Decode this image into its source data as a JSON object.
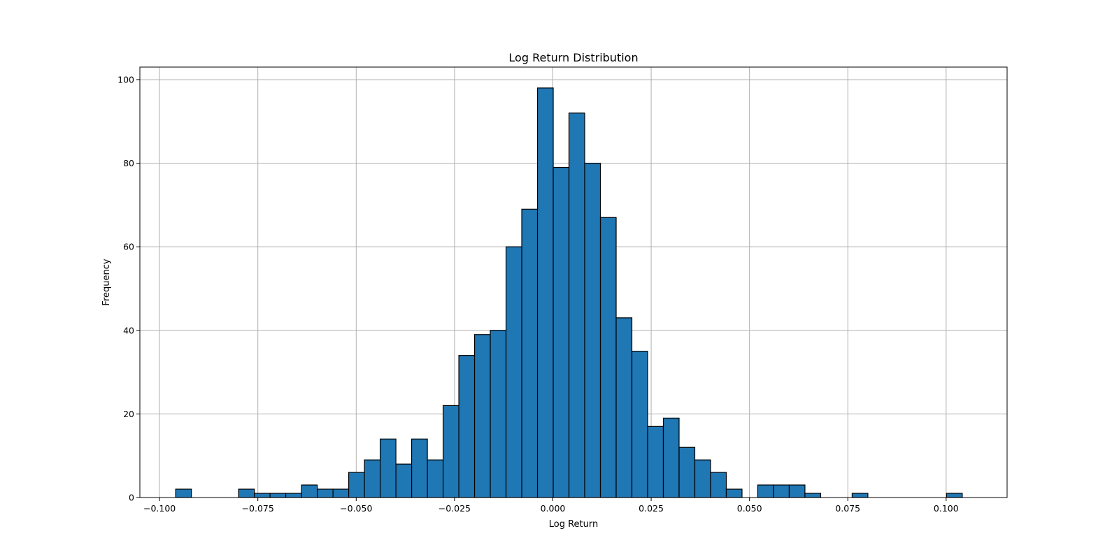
{
  "chart_data": {
    "type": "histogram",
    "title": "Log Return Distribution",
    "xlabel": "Log Return",
    "ylabel": "Frequency",
    "xlim": [
      -0.105,
      0.1155
    ],
    "ylim": [
      0,
      103
    ],
    "grid": true,
    "bar_color": "#1f77b4",
    "edge_color": "#000000",
    "grid_color": "#b0b0b0",
    "x_ticks": [
      -0.1,
      -0.075,
      -0.05,
      -0.025,
      0.0,
      0.025,
      0.05,
      0.075,
      0.1
    ],
    "x_tick_labels": [
      "−0.100",
      "−0.075",
      "−0.050",
      "−0.025",
      "0.000",
      "0.025",
      "0.050",
      "0.075",
      "0.100"
    ],
    "y_ticks": [
      0,
      20,
      40,
      60,
      80,
      100
    ],
    "y_tick_labels": [
      "0",
      "20",
      "40",
      "60",
      "80",
      "100"
    ],
    "bin_start": -0.0959,
    "bin_width": 0.004,
    "counts": [
      2,
      0,
      0,
      0,
      2,
      1,
      1,
      1,
      3,
      2,
      2,
      6,
      9,
      14,
      8,
      14,
      9,
      22,
      34,
      39,
      40,
      60,
      69,
      98,
      79,
      92,
      80,
      67,
      43,
      35,
      17,
      19,
      12,
      9,
      6,
      2,
      0,
      3,
      3,
      3,
      1,
      0,
      0,
      1,
      0,
      0,
      0,
      0,
      0,
      1
    ]
  }
}
